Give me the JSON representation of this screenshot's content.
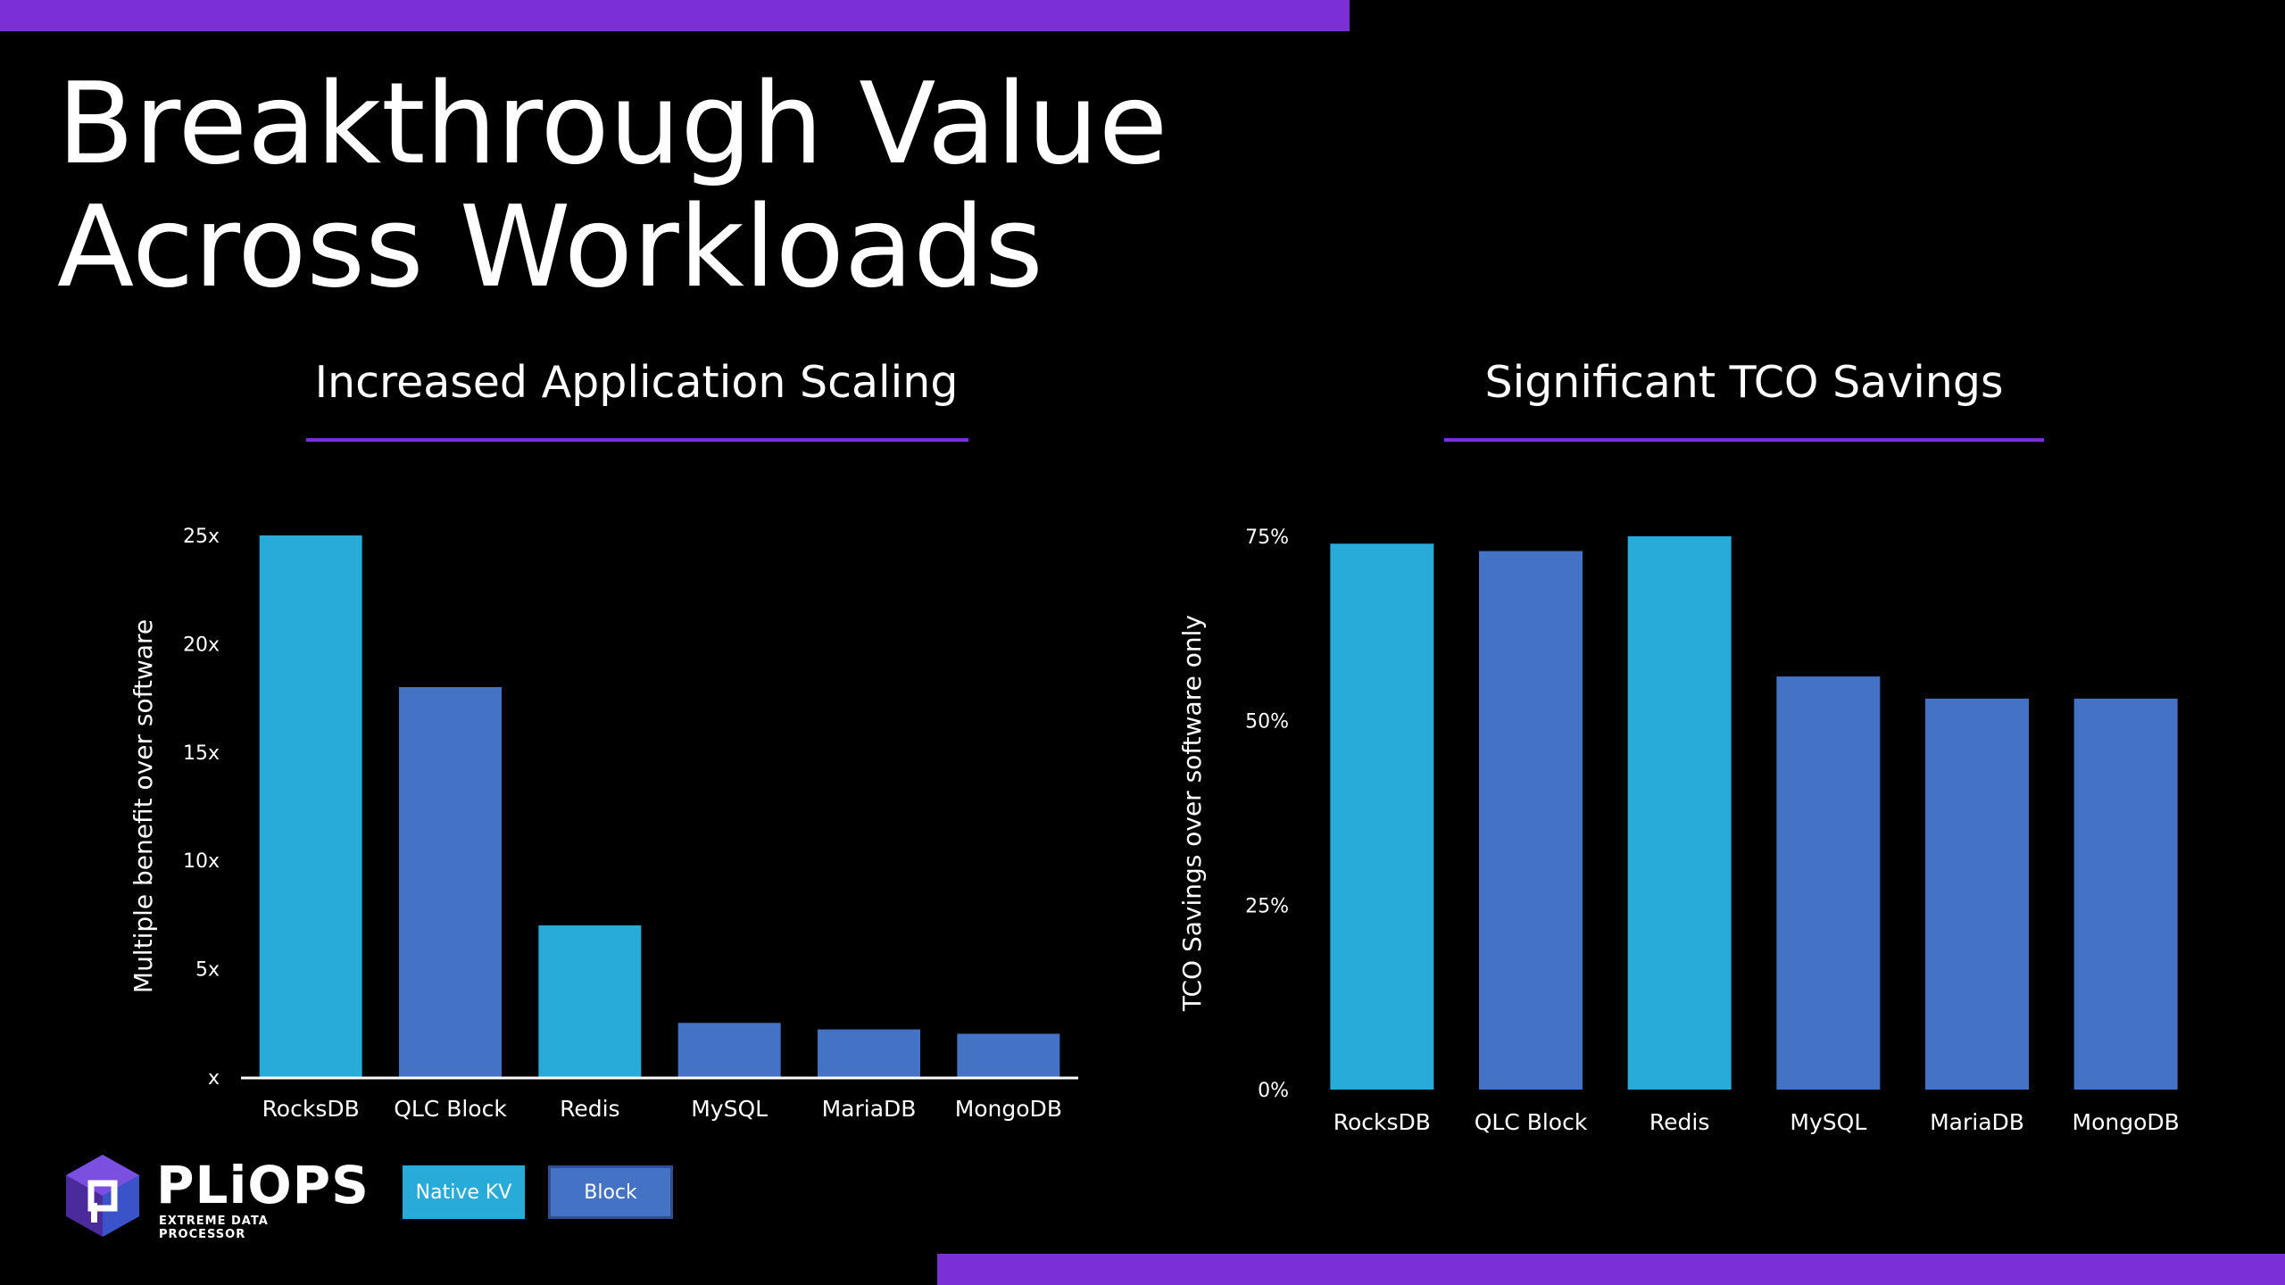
{
  "title": {
    "line1": "Breakthrough Value",
    "line2": "Across Workloads"
  },
  "colors": {
    "accent": "#7b2fd6",
    "native_kv": "#29abd9",
    "block": "#4472c4",
    "background": "#000000"
  },
  "logo": {
    "name": "PLiOPS",
    "tagline": "EXTREME DATA PROCESSOR"
  },
  "legend": {
    "native_kv": "Native KV",
    "block": "Block"
  },
  "chart_data": [
    {
      "type": "bar",
      "title": "Increased Application Scaling",
      "ylabel": "Multiple benefit over software",
      "xlabel": "",
      "categories": [
        "RocksDB",
        "QLC Block",
        "Redis",
        "MySQL",
        "MariaDB",
        "MongoDB"
      ],
      "values": [
        25,
        18,
        7,
        2.5,
        2.2,
        2
      ],
      "bar_types": [
        "native_kv",
        "block",
        "native_kv",
        "block",
        "block",
        "block"
      ],
      "ylim": [
        0,
        25
      ],
      "yticks": [
        0,
        5,
        10,
        15,
        20,
        25
      ],
      "ytick_labels": [
        "x",
        "5x",
        "10x",
        "15x",
        "20x",
        "25x"
      ],
      "grid": false
    },
    {
      "type": "bar",
      "title": "Significant TCO Savings",
      "ylabel": "TCO Savings over software only",
      "xlabel": "",
      "categories": [
        "RocksDB",
        "QLC Block",
        "Redis",
        "MySQL",
        "MariaDB",
        "MongoDB"
      ],
      "values": [
        74,
        73,
        75,
        56,
        53,
        53
      ],
      "bar_types": [
        "native_kv",
        "block",
        "native_kv",
        "block",
        "block",
        "block"
      ],
      "ylim": [
        0,
        75
      ],
      "yticks": [
        0,
        25,
        50,
        75
      ],
      "ytick_labels": [
        "0%",
        "25%",
        "50%",
        "75%"
      ],
      "grid": false
    }
  ]
}
